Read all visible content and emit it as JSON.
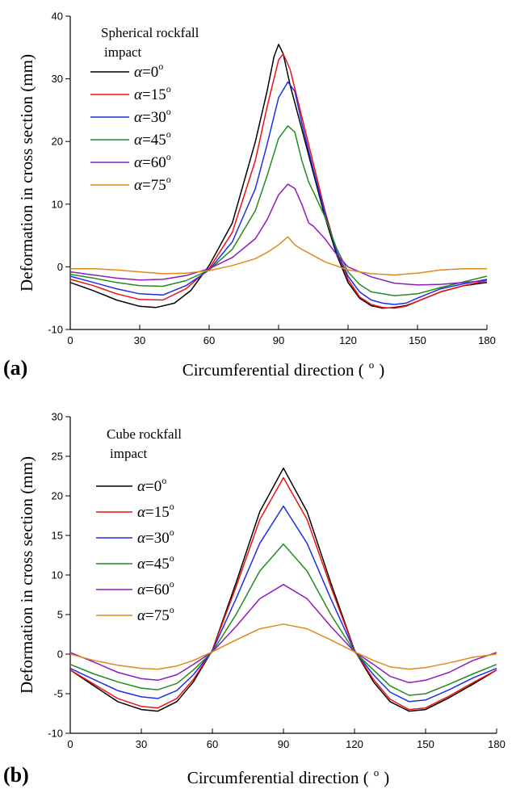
{
  "chart_data": [
    {
      "type": "line",
      "panel_label": "(a)",
      "annotation_lines": [
        "Spherical rockfall",
        "impact"
      ],
      "xlabel": "Circumferential direction (",
      "xlabel_unit": "o",
      "xlabel_close": ")",
      "ylabel": "Deformation in cross section (mm)",
      "xlim": [
        0,
        180
      ],
      "ylim": [
        -10,
        40
      ],
      "xticks": [
        0,
        30,
        60,
        90,
        120,
        150,
        180
      ],
      "yticks": [
        -10,
        0,
        10,
        20,
        30,
        40
      ],
      "grid": false,
      "legend_position": "top-left",
      "series": [
        {
          "name": "α=0°",
          "legend_symbol": "α",
          "legend_text": "=0",
          "legend_sup": "o",
          "color": "#000000",
          "x": [
            0,
            10,
            20,
            30,
            37,
            45,
            52,
            60,
            70,
            80,
            85,
            88,
            90,
            92,
            95,
            100,
            105,
            110,
            115,
            120,
            125,
            130,
            135,
            140,
            145,
            150,
            160,
            170,
            180
          ],
          "y": [
            -2.5,
            -3.8,
            -5.3,
            -6.3,
            -6.5,
            -5.8,
            -3.8,
            0.2,
            7.0,
            20.0,
            28.0,
            33.5,
            35.5,
            34.0,
            29.0,
            22.0,
            15.0,
            8.0,
            2.0,
            -2.5,
            -5.0,
            -6.2,
            -6.6,
            -6.5,
            -6.2,
            -5.5,
            -4.0,
            -3.0,
            -2.5
          ]
        },
        {
          "name": "α=15°",
          "legend_symbol": "α",
          "legend_text": "=15",
          "legend_sup": "o",
          "color": "#ee1111",
          "x": [
            0,
            10,
            20,
            30,
            40,
            50,
            60,
            70,
            80,
            85,
            90,
            92,
            95,
            100,
            105,
            110,
            115,
            120,
            125,
            130,
            135,
            140,
            145,
            150,
            160,
            170,
            180
          ],
          "y": [
            -2.0,
            -3.0,
            -4.3,
            -5.2,
            -5.3,
            -3.5,
            -0.3,
            5.5,
            17.0,
            25.5,
            33.0,
            34.0,
            31.5,
            24.0,
            16.5,
            9.0,
            2.5,
            -2.0,
            -4.8,
            -6.0,
            -6.5,
            -6.6,
            -6.3,
            -5.5,
            -4.0,
            -3.0,
            -2.2
          ]
        },
        {
          "name": "α=30°",
          "legend_symbol": "α",
          "legend_text": "=30",
          "legend_sup": "o",
          "color": "#1f2fe6",
          "x": [
            0,
            10,
            20,
            30,
            40,
            50,
            60,
            70,
            80,
            85,
            90,
            94,
            97,
            100,
            105,
            110,
            115,
            120,
            125,
            130,
            135,
            140,
            145,
            150,
            160,
            170,
            180
          ],
          "y": [
            -1.5,
            -2.5,
            -3.5,
            -4.3,
            -4.5,
            -3.0,
            -0.5,
            4.0,
            12.5,
            19.5,
            27.0,
            29.5,
            28.0,
            23.0,
            15.5,
            8.5,
            2.5,
            -1.5,
            -4.0,
            -5.3,
            -5.8,
            -6.0,
            -5.8,
            -5.0,
            -3.5,
            -2.7,
            -2.0
          ]
        },
        {
          "name": "α=45°",
          "legend_symbol": "α",
          "legend_text": "=45",
          "legend_sup": "o",
          "color": "#228b22",
          "x": [
            0,
            10,
            20,
            30,
            40,
            50,
            60,
            70,
            80,
            85,
            90,
            94,
            97,
            100,
            103,
            105,
            110,
            115,
            120,
            125,
            130,
            140,
            150,
            160,
            170,
            180
          ],
          "y": [
            -1.2,
            -1.8,
            -2.5,
            -3.0,
            -3.1,
            -2.2,
            -0.5,
            2.8,
            9.0,
            14.5,
            20.5,
            22.5,
            21.5,
            17.0,
            13.5,
            12.0,
            8.0,
            3.0,
            -0.8,
            -2.8,
            -4.0,
            -4.6,
            -4.3,
            -3.3,
            -2.4,
            -1.5
          ]
        },
        {
          "name": "α=60°",
          "legend_symbol": "α",
          "legend_text": "=60",
          "legend_sup": "o",
          "color": "#8e1bbf",
          "x": [
            0,
            10,
            20,
            30,
            40,
            50,
            60,
            70,
            80,
            85,
            90,
            94,
            97,
            100,
            103,
            105,
            110,
            115,
            120,
            130,
            140,
            150,
            160,
            170,
            180
          ],
          "y": [
            -0.8,
            -1.3,
            -1.8,
            -2.1,
            -2.0,
            -1.4,
            -0.3,
            1.5,
            4.5,
            7.5,
            11.5,
            13.2,
            12.5,
            10.0,
            7.0,
            6.5,
            4.5,
            2.0,
            0.0,
            -1.6,
            -2.6,
            -2.9,
            -2.8,
            -2.5,
            -2.2
          ]
        },
        {
          "name": "α=75°",
          "legend_symbol": "α",
          "legend_text": "=75",
          "legend_sup": "o",
          "color": "#e08a1a",
          "x": [
            0,
            10,
            20,
            30,
            40,
            50,
            60,
            70,
            80,
            85,
            90,
            94,
            97,
            100,
            110,
            120,
            130,
            140,
            150,
            160,
            170,
            180
          ],
          "y": [
            -0.3,
            -0.3,
            -0.5,
            -0.8,
            -1.1,
            -1.0,
            -0.6,
            0.2,
            1.3,
            2.3,
            3.5,
            4.8,
            3.5,
            2.8,
            0.8,
            -0.5,
            -1.1,
            -1.3,
            -1.0,
            -0.5,
            -0.3,
            -0.3
          ]
        }
      ]
    },
    {
      "type": "line",
      "panel_label": "(b)",
      "annotation_lines": [
        "Cube rockfall",
        "impact"
      ],
      "xlabel": "Circumferential direction (",
      "xlabel_unit": "o",
      "xlabel_close": ")",
      "ylabel": "Deformation in cross section (mm)",
      "xlim": [
        0,
        180
      ],
      "ylim": [
        -10,
        30
      ],
      "xticks": [
        0,
        30,
        60,
        90,
        120,
        150,
        180
      ],
      "yticks": [
        -10,
        -5,
        0,
        5,
        10,
        15,
        20,
        25,
        30
      ],
      "grid": false,
      "legend_position": "top-left",
      "series": [
        {
          "name": "α=0°",
          "legend_symbol": "α",
          "legend_text": "=0",
          "legend_sup": "o",
          "color": "#000000",
          "x": [
            0,
            10,
            20,
            30,
            37,
            45,
            52,
            60,
            70,
            80,
            90,
            100,
            110,
            120,
            128,
            135,
            143,
            150,
            160,
            170,
            180
          ],
          "y": [
            -2.0,
            -4.0,
            -6.0,
            -7.0,
            -7.2,
            -6.0,
            -3.5,
            0.5,
            9.0,
            18.0,
            23.5,
            18.0,
            9.0,
            0.5,
            -3.5,
            -6.0,
            -7.2,
            -7.0,
            -5.5,
            -3.8,
            -2.0
          ]
        },
        {
          "name": "α=15°",
          "legend_symbol": "α",
          "legend_text": "=15",
          "legend_sup": "o",
          "color": "#ee1111",
          "x": [
            0,
            10,
            20,
            30,
            37,
            45,
            52,
            60,
            70,
            80,
            90,
            100,
            110,
            120,
            128,
            135,
            143,
            150,
            160,
            170,
            180
          ],
          "y": [
            -2.0,
            -3.8,
            -5.6,
            -6.6,
            -6.8,
            -5.6,
            -3.2,
            0.5,
            8.5,
            17.0,
            22.3,
            17.0,
            8.5,
            0.5,
            -3.2,
            -5.7,
            -7.0,
            -6.8,
            -5.3,
            -3.6,
            -2.0
          ]
        },
        {
          "name": "α=30°",
          "legend_symbol": "α",
          "legend_text": "=30",
          "legend_sup": "o",
          "color": "#1f2fe6",
          "x": [
            0,
            10,
            20,
            30,
            37,
            45,
            52,
            60,
            70,
            80,
            90,
            100,
            110,
            120,
            128,
            135,
            143,
            150,
            160,
            170,
            180
          ],
          "y": [
            -1.8,
            -3.2,
            -4.6,
            -5.4,
            -5.6,
            -4.6,
            -2.6,
            0.4,
            7.0,
            14.0,
            18.7,
            14.0,
            7.0,
            0.4,
            -2.6,
            -4.8,
            -6.0,
            -5.8,
            -4.5,
            -3.0,
            -1.8
          ]
        },
        {
          "name": "α=45°",
          "legend_symbol": "α",
          "legend_text": "=45",
          "legend_sup": "o",
          "color": "#228b22",
          "x": [
            0,
            10,
            20,
            30,
            37,
            45,
            52,
            60,
            70,
            80,
            90,
            100,
            110,
            120,
            128,
            135,
            143,
            150,
            160,
            170,
            180
          ],
          "y": [
            -1.3,
            -2.5,
            -3.5,
            -4.3,
            -4.5,
            -3.7,
            -2.0,
            0.3,
            5.0,
            10.5,
            13.9,
            10.5,
            5.0,
            0.3,
            -2.0,
            -4.0,
            -5.2,
            -5.0,
            -3.8,
            -2.5,
            -1.3
          ]
        },
        {
          "name": "α=60°",
          "legend_symbol": "α",
          "legend_text": "=60",
          "legend_sup": "o",
          "color": "#8e1bbf",
          "x": [
            0,
            10,
            20,
            30,
            37,
            45,
            52,
            60,
            70,
            80,
            90,
            100,
            110,
            120,
            128,
            135,
            143,
            150,
            160,
            170,
            180
          ],
          "y": [
            0.2,
            -1.0,
            -2.3,
            -3.1,
            -3.3,
            -2.6,
            -1.3,
            0.3,
            3.5,
            7.0,
            8.8,
            7.0,
            3.5,
            0.3,
            -1.3,
            -2.8,
            -3.6,
            -3.3,
            -2.3,
            -0.8,
            0.2
          ]
        },
        {
          "name": "α=75°",
          "legend_symbol": "α",
          "legend_text": "=75",
          "legend_sup": "o",
          "color": "#e08a1a",
          "x": [
            0,
            10,
            20,
            30,
            37,
            45,
            52,
            60,
            70,
            80,
            90,
            100,
            110,
            120,
            128,
            135,
            143,
            150,
            160,
            170,
            180
          ],
          "y": [
            0.0,
            -0.8,
            -1.4,
            -1.8,
            -1.9,
            -1.5,
            -0.8,
            0.3,
            1.8,
            3.2,
            3.8,
            3.2,
            1.8,
            0.3,
            -0.8,
            -1.6,
            -1.9,
            -1.7,
            -1.1,
            -0.4,
            0.0
          ]
        }
      ]
    }
  ]
}
